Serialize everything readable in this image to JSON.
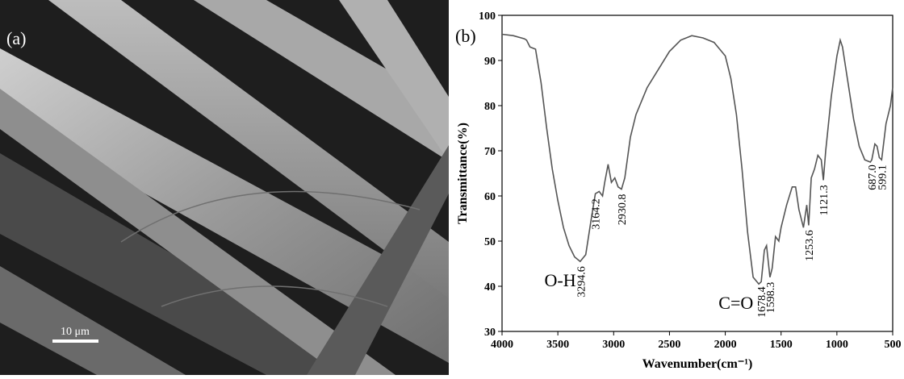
{
  "image_panel": {
    "label": "(a)",
    "scale_bar": "10 μm"
  },
  "chart_data": {
    "type": "line",
    "label": "(b)",
    "xlabel": "Wavenumber(cm⁻¹)",
    "ylabel": "Transmittance(%)",
    "xlim": [
      4000,
      500
    ],
    "xticks": [
      4000,
      3500,
      3000,
      2500,
      2000,
      1500,
      1000,
      500
    ],
    "ylim": [
      30,
      100
    ],
    "yticks": [
      30,
      40,
      50,
      60,
      70,
      80,
      90,
      100
    ],
    "color": "#555555",
    "x": [
      4000,
      3900,
      3800,
      3780,
      3750,
      3700,
      3650,
      3600,
      3550,
      3500,
      3450,
      3400,
      3350,
      3300,
      3250,
      3200,
      3164,
      3130,
      3100,
      3080,
      3050,
      3020,
      2990,
      2960,
      2930,
      2900,
      2850,
      2800,
      2700,
      2600,
      2500,
      2400,
      2300,
      2200,
      2100,
      2000,
      1950,
      1900,
      1850,
      1800,
      1750,
      1700,
      1678,
      1650,
      1630,
      1600,
      1580,
      1550,
      1520,
      1500,
      1450,
      1400,
      1370,
      1340,
      1300,
      1270,
      1253,
      1230,
      1200,
      1170,
      1140,
      1121,
      1100,
      1050,
      1000,
      970,
      950,
      900,
      850,
      800,
      750,
      700,
      687,
      660,
      640,
      620,
      599,
      560,
      520,
      500
    ],
    "values": [
      95.8,
      95.5,
      94.8,
      94.5,
      93,
      92.5,
      85,
      75,
      66,
      59,
      53,
      49,
      46.5,
      45.5,
      47,
      55,
      60.5,
      61,
      60,
      63,
      67,
      63,
      64,
      62,
      61.5,
      64,
      73,
      78,
      84,
      88,
      92,
      94.5,
      95.5,
      95,
      94,
      91,
      86,
      78,
      66,
      52,
      42,
      40.5,
      41,
      48,
      49,
      42,
      44,
      51,
      50,
      53,
      58,
      62,
      62,
      57,
      53,
      58,
      53.5,
      64,
      66,
      69,
      68,
      63.5,
      70,
      82,
      91,
      94.5,
      93,
      85,
      77,
      71,
      68,
      67.5,
      68,
      71.5,
      71,
      68.5,
      68,
      76,
      80,
      84
    ],
    "peak_labels": [
      {
        "text": "3294.6",
        "x": 3294.6,
        "y": 45.5
      },
      {
        "text": "3164.2",
        "x": 3164.2,
        "y": 60.5
      },
      {
        "text": "2930.8",
        "x": 2930.8,
        "y": 61.5
      },
      {
        "text": "1678.4",
        "x": 1678.4,
        "y": 41
      },
      {
        "text": "1598.3",
        "x": 1598.3,
        "y": 42
      },
      {
        "text": "1253.6",
        "x": 1253.6,
        "y": 53.5
      },
      {
        "text": "1121.3",
        "x": 1121.3,
        "y": 63.5
      },
      {
        "text": "687.0",
        "x": 687.0,
        "y": 68
      },
      {
        "text": "599.1",
        "x": 599.1,
        "y": 68
      }
    ],
    "group_labels": [
      {
        "text": "O-H",
        "x": 3620,
        "y": 40
      },
      {
        "text": "C=O",
        "x": 2060,
        "y": 35
      }
    ]
  }
}
